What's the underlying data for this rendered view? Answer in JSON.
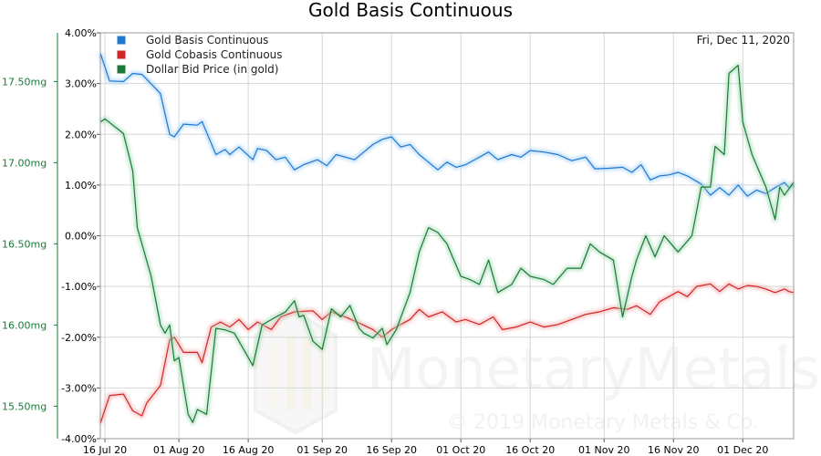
{
  "chart_data": {
    "type": "line",
    "title": "Gold Basis Continuous",
    "date_label": "Fri, Dec 11, 2020",
    "watermark": {
      "brand": "MonetaryMetals",
      "registered": "®",
      "copyright": "© 2019 Monetary Metals & Co."
    },
    "x_range": [
      "2020-07-15",
      "2020-12-12"
    ],
    "x_ticks": [
      "16 Jul 20",
      "01 Aug 20",
      "16 Aug 20",
      "01 Sep 20",
      "16 Sep 20",
      "01 Oct 20",
      "16 Oct 20",
      "01 Nov 20",
      "16 Nov 20",
      "01 Dec 20"
    ],
    "x_tick_dates": [
      "2020-07-16",
      "2020-08-01",
      "2020-08-16",
      "2020-09-01",
      "2020-09-16",
      "2020-10-01",
      "2020-10-16",
      "2020-11-01",
      "2020-11-16",
      "2020-12-01"
    ],
    "y_left": {
      "unit": "%",
      "range": [
        -4,
        4
      ],
      "tick_labels": [
        "4.00%",
        "3.00%",
        "2.00%",
        "1.00%",
        "0.00%",
        "-1.00%",
        "-2.00%",
        "-3.00%",
        "-4.00%"
      ],
      "tick_values": [
        4,
        3,
        2,
        1,
        0,
        -1,
        -2,
        -3,
        -4
      ]
    },
    "y_right": {
      "unit": "mg",
      "range": [
        15.3,
        17.8
      ],
      "tick_labels": [
        "17.50mg",
        "17.00mg",
        "16.50mg",
        "16.00mg",
        "15.50mg"
      ],
      "tick_values": [
        17.5,
        17.0,
        16.5,
        16.0,
        15.5
      ]
    },
    "grid": true,
    "legend_position": "top-left",
    "series": [
      {
        "name": "Gold Basis Continuous",
        "color": "#1f78d0",
        "axis": "left",
        "points": [
          [
            "2020-07-15",
            3.6
          ],
          [
            "2020-07-17",
            3.05
          ],
          [
            "2020-07-20",
            3.04
          ],
          [
            "2020-07-22",
            3.2
          ],
          [
            "2020-07-24",
            3.18
          ],
          [
            "2020-07-27",
            2.9
          ],
          [
            "2020-07-28",
            2.8
          ],
          [
            "2020-07-30",
            2.0
          ],
          [
            "2020-07-31",
            1.95
          ],
          [
            "2020-08-02",
            2.2
          ],
          [
            "2020-08-05",
            2.18
          ],
          [
            "2020-08-06",
            2.25
          ],
          [
            "2020-08-09",
            1.6
          ],
          [
            "2020-08-11",
            1.7
          ],
          [
            "2020-08-12",
            1.6
          ],
          [
            "2020-08-14",
            1.75
          ],
          [
            "2020-08-17",
            1.5
          ],
          [
            "2020-08-18",
            1.72
          ],
          [
            "2020-08-20",
            1.68
          ],
          [
            "2020-08-22",
            1.5
          ],
          [
            "2020-08-24",
            1.55
          ],
          [
            "2020-08-26",
            1.3
          ],
          [
            "2020-08-28",
            1.4
          ],
          [
            "2020-08-31",
            1.5
          ],
          [
            "2020-09-02",
            1.38
          ],
          [
            "2020-09-04",
            1.6
          ],
          [
            "2020-09-08",
            1.5
          ],
          [
            "2020-09-10",
            1.65
          ],
          [
            "2020-09-12",
            1.8
          ],
          [
            "2020-09-14",
            1.9
          ],
          [
            "2020-09-16",
            1.95
          ],
          [
            "2020-09-18",
            1.75
          ],
          [
            "2020-09-20",
            1.8
          ],
          [
            "2020-09-22",
            1.6
          ],
          [
            "2020-09-24",
            1.45
          ],
          [
            "2020-09-26",
            1.3
          ],
          [
            "2020-09-28",
            1.45
          ],
          [
            "2020-09-30",
            1.35
          ],
          [
            "2020-10-02",
            1.4
          ],
          [
            "2020-10-04",
            1.5
          ],
          [
            "2020-10-07",
            1.65
          ],
          [
            "2020-10-09",
            1.5
          ],
          [
            "2020-10-12",
            1.6
          ],
          [
            "2020-10-14",
            1.55
          ],
          [
            "2020-10-16",
            1.68
          ],
          [
            "2020-10-19",
            1.65
          ],
          [
            "2020-10-22",
            1.6
          ],
          [
            "2020-10-25",
            1.48
          ],
          [
            "2020-10-28",
            1.55
          ],
          [
            "2020-10-30",
            1.32
          ],
          [
            "2020-11-02",
            1.33
          ],
          [
            "2020-11-05",
            1.35
          ],
          [
            "2020-11-07",
            1.25
          ],
          [
            "2020-11-09",
            1.4
          ],
          [
            "2020-11-11",
            1.1
          ],
          [
            "2020-11-13",
            1.18
          ],
          [
            "2020-11-15",
            1.2
          ],
          [
            "2020-11-17",
            1.25
          ],
          [
            "2020-11-19",
            1.18
          ],
          [
            "2020-11-22",
            1.02
          ],
          [
            "2020-11-24",
            0.8
          ],
          [
            "2020-11-26",
            0.95
          ],
          [
            "2020-11-28",
            0.8
          ],
          [
            "2020-11-30",
            1.0
          ],
          [
            "2020-12-02",
            0.78
          ],
          [
            "2020-12-04",
            0.9
          ],
          [
            "2020-12-06",
            0.83
          ],
          [
            "2020-12-08",
            0.95
          ],
          [
            "2020-12-10",
            1.05
          ],
          [
            "2020-12-11",
            0.95
          ],
          [
            "2020-12-12",
            1.0
          ]
        ]
      },
      {
        "name": "Gold Cobasis Continuous",
        "color": "#d32626",
        "axis": "left",
        "points": [
          [
            "2020-07-15",
            -3.7
          ],
          [
            "2020-07-17",
            -3.15
          ],
          [
            "2020-07-20",
            -3.12
          ],
          [
            "2020-07-22",
            -3.45
          ],
          [
            "2020-07-24",
            -3.55
          ],
          [
            "2020-07-25",
            -3.3
          ],
          [
            "2020-07-28",
            -2.95
          ],
          [
            "2020-07-30",
            -2.05
          ],
          [
            "2020-07-31",
            -2.0
          ],
          [
            "2020-08-02",
            -2.3
          ],
          [
            "2020-08-05",
            -2.3
          ],
          [
            "2020-08-06",
            -2.5
          ],
          [
            "2020-08-08",
            -1.8
          ],
          [
            "2020-08-10",
            -1.7
          ],
          [
            "2020-08-12",
            -1.8
          ],
          [
            "2020-08-14",
            -1.65
          ],
          [
            "2020-08-16",
            -1.85
          ],
          [
            "2020-08-18",
            -1.7
          ],
          [
            "2020-08-21",
            -1.85
          ],
          [
            "2020-08-23",
            -1.6
          ],
          [
            "2020-08-26",
            -1.5
          ],
          [
            "2020-08-30",
            -1.48
          ],
          [
            "2020-09-01",
            -1.65
          ],
          [
            "2020-09-03",
            -1.5
          ],
          [
            "2020-09-06",
            -1.6
          ],
          [
            "2020-09-09",
            -1.72
          ],
          [
            "2020-09-12",
            -1.85
          ],
          [
            "2020-09-14",
            -2.0
          ],
          [
            "2020-09-16",
            -1.85
          ],
          [
            "2020-09-18",
            -1.75
          ],
          [
            "2020-09-20",
            -1.65
          ],
          [
            "2020-09-22",
            -1.45
          ],
          [
            "2020-09-24",
            -1.6
          ],
          [
            "2020-09-27",
            -1.5
          ],
          [
            "2020-09-30",
            -1.7
          ],
          [
            "2020-10-02",
            -1.65
          ],
          [
            "2020-10-05",
            -1.75
          ],
          [
            "2020-10-08",
            -1.6
          ],
          [
            "2020-10-10",
            -1.85
          ],
          [
            "2020-10-13",
            -1.8
          ],
          [
            "2020-10-16",
            -1.7
          ],
          [
            "2020-10-19",
            -1.8
          ],
          [
            "2020-10-22",
            -1.75
          ],
          [
            "2020-10-25",
            -1.65
          ],
          [
            "2020-10-28",
            -1.55
          ],
          [
            "2020-10-31",
            -1.5
          ],
          [
            "2020-11-03",
            -1.42
          ],
          [
            "2020-11-06",
            -1.45
          ],
          [
            "2020-11-08",
            -1.38
          ],
          [
            "2020-11-11",
            -1.55
          ],
          [
            "2020-11-13",
            -1.3
          ],
          [
            "2020-11-15",
            -1.2
          ],
          [
            "2020-11-17",
            -1.1
          ],
          [
            "2020-11-19",
            -1.2
          ],
          [
            "2020-11-21",
            -1.0
          ],
          [
            "2020-11-24",
            -0.95
          ],
          [
            "2020-11-26",
            -1.1
          ],
          [
            "2020-11-28",
            -0.95
          ],
          [
            "2020-11-30",
            -1.05
          ],
          [
            "2020-12-02",
            -0.98
          ],
          [
            "2020-12-04",
            -1.0
          ],
          [
            "2020-12-06",
            -1.05
          ],
          [
            "2020-12-08",
            -1.12
          ],
          [
            "2020-12-10",
            -1.05
          ],
          [
            "2020-12-11",
            -1.1
          ],
          [
            "2020-12-12",
            -1.12
          ]
        ]
      },
      {
        "name": "Dollar Bid Price (in gold)",
        "color": "#1a7a3a",
        "axis": "right",
        "points": [
          [
            "2020-07-15",
            17.25
          ],
          [
            "2020-07-16",
            17.27
          ],
          [
            "2020-07-20",
            17.18
          ],
          [
            "2020-07-22",
            16.95
          ],
          [
            "2020-07-23",
            16.6
          ],
          [
            "2020-07-26",
            16.3
          ],
          [
            "2020-07-28",
            16.0
          ],
          [
            "2020-07-29",
            15.95
          ],
          [
            "2020-07-30",
            16.0
          ],
          [
            "2020-07-31",
            15.78
          ],
          [
            "2020-08-01",
            15.8
          ],
          [
            "2020-08-03",
            15.45
          ],
          [
            "2020-08-04",
            15.4
          ],
          [
            "2020-08-05",
            15.48
          ],
          [
            "2020-08-07",
            15.45
          ],
          [
            "2020-08-09",
            15.98
          ],
          [
            "2020-08-11",
            15.97
          ],
          [
            "2020-08-13",
            15.95
          ],
          [
            "2020-08-15",
            15.85
          ],
          [
            "2020-08-17",
            15.75
          ],
          [
            "2020-08-19",
            16.0
          ],
          [
            "2020-08-22",
            16.05
          ],
          [
            "2020-08-24",
            16.08
          ],
          [
            "2020-08-26",
            16.15
          ],
          [
            "2020-08-27",
            16.05
          ],
          [
            "2020-08-28",
            16.06
          ],
          [
            "2020-08-30",
            15.9
          ],
          [
            "2020-09-01",
            15.85
          ],
          [
            "2020-09-03",
            16.1
          ],
          [
            "2020-09-05",
            16.05
          ],
          [
            "2020-09-07",
            16.12
          ],
          [
            "2020-09-09",
            15.98
          ],
          [
            "2020-09-10",
            15.95
          ],
          [
            "2020-09-12",
            15.92
          ],
          [
            "2020-09-14",
            15.98
          ],
          [
            "2020-09-15",
            15.88
          ],
          [
            "2020-09-17",
            15.97
          ],
          [
            "2020-09-20",
            16.2
          ],
          [
            "2020-09-22",
            16.45
          ],
          [
            "2020-09-24",
            16.6
          ],
          [
            "2020-09-26",
            16.57
          ],
          [
            "2020-09-28",
            16.5
          ],
          [
            "2020-10-01",
            16.3
          ],
          [
            "2020-10-03",
            16.28
          ],
          [
            "2020-10-05",
            16.25
          ],
          [
            "2020-10-07",
            16.4
          ],
          [
            "2020-10-09",
            16.2
          ],
          [
            "2020-10-12",
            16.25
          ],
          [
            "2020-10-14",
            16.35
          ],
          [
            "2020-10-16",
            16.3
          ],
          [
            "2020-10-19",
            16.28
          ],
          [
            "2020-10-21",
            16.25
          ],
          [
            "2020-10-24",
            16.35
          ],
          [
            "2020-10-27",
            16.35
          ],
          [
            "2020-10-29",
            16.5
          ],
          [
            "2020-10-31",
            16.45
          ],
          [
            "2020-11-03",
            16.4
          ],
          [
            "2020-11-05",
            16.05
          ],
          [
            "2020-11-07",
            16.3
          ],
          [
            "2020-11-08",
            16.4
          ],
          [
            "2020-11-10",
            16.55
          ],
          [
            "2020-11-12",
            16.42
          ],
          [
            "2020-11-14",
            16.55
          ],
          [
            "2020-11-17",
            16.45
          ],
          [
            "2020-11-20",
            16.55
          ],
          [
            "2020-11-22",
            16.85
          ],
          [
            "2020-11-24",
            16.85
          ],
          [
            "2020-11-25",
            17.1
          ],
          [
            "2020-11-27",
            17.05
          ],
          [
            "2020-11-28",
            17.55
          ],
          [
            "2020-11-30",
            17.6
          ],
          [
            "2020-12-01",
            17.25
          ],
          [
            "2020-12-03",
            17.05
          ],
          [
            "2020-12-06",
            16.85
          ],
          [
            "2020-12-08",
            16.65
          ],
          [
            "2020-12-09",
            16.85
          ],
          [
            "2020-12-10",
            16.8
          ],
          [
            "2020-12-12",
            16.88
          ]
        ]
      }
    ]
  }
}
